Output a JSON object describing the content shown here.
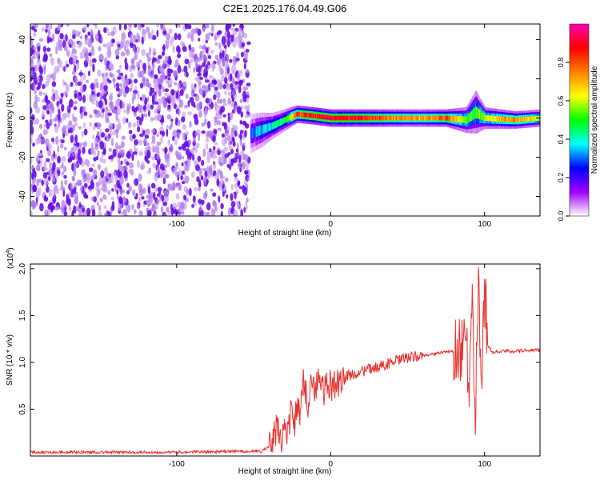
{
  "chart_data": [
    {
      "type": "heatmap",
      "title": "C2E1.2025.176.04.49.G06",
      "xlabel": "Height of straight line (km)",
      "ylabel": "Frequency (Hz)",
      "xlim": [
        -195,
        136
      ],
      "ylim": [
        -50,
        48
      ],
      "xticks": [
        -100,
        0,
        100
      ],
      "yticks": [
        -40,
        -20,
        0,
        20,
        40
      ],
      "colorbar": {
        "label": "Normalized spectral amplitude",
        "range": [
          0,
          1
        ],
        "ticks": [
          "0.0",
          "0.2",
          "0.4",
          "0.6",
          "0.8"
        ],
        "colors": [
          "#ffffff",
          "#a000ff",
          "#0000ff",
          "#00ffff",
          "#00ff00",
          "#ffff00",
          "#ff8000",
          "#ff0000",
          "#ff00b0"
        ]
      },
      "noise_region": {
        "x": [
          -195,
          -53
        ],
        "y": [
          -50,
          48
        ],
        "amplitude": [
          0.0,
          0.12
        ]
      },
      "signal_ridge": [
        {
          "x": -52,
          "f": -8,
          "amp": 0.25,
          "width": 9
        },
        {
          "x": -45,
          "f": -6,
          "amp": 0.35,
          "width": 8
        },
        {
          "x": -38,
          "f": -4,
          "amp": 0.4,
          "width": 6
        },
        {
          "x": -30,
          "f": -1,
          "amp": 0.45,
          "width": 5
        },
        {
          "x": -22,
          "f": 2,
          "amp": 0.8,
          "width": 4
        },
        {
          "x": -10,
          "f": 1,
          "amp": 0.85,
          "width": 4
        },
        {
          "x": 0,
          "f": 0,
          "amp": 0.9,
          "width": 4
        },
        {
          "x": 20,
          "f": 0,
          "amp": 0.85,
          "width": 4
        },
        {
          "x": 40,
          "f": 0,
          "amp": 0.75,
          "width": 4
        },
        {
          "x": 60,
          "f": 0,
          "amp": 0.7,
          "width": 4
        },
        {
          "x": 75,
          "f": 0,
          "amp": 0.8,
          "width": 4
        },
        {
          "x": 88,
          "f": -1,
          "amp": 0.55,
          "width": 6
        },
        {
          "x": 94,
          "f": 3,
          "amp": 0.5,
          "width": 10
        },
        {
          "x": 100,
          "f": 0,
          "amp": 0.6,
          "width": 5
        },
        {
          "x": 120,
          "f": -1,
          "amp": 0.75,
          "width": 4
        },
        {
          "x": 136,
          "f": 0,
          "amp": 0.6,
          "width": 4
        }
      ]
    },
    {
      "type": "line",
      "xlabel": "Height of straight line (km)",
      "ylabel": "SNR (10 * v/v)",
      "y_multiplier": "(x10",
      "y_multiplier_exponent": "4",
      "xlim": [
        -195,
        136
      ],
      "ylim": [
        0,
        2.05
      ],
      "xticks": [
        -100,
        0,
        100
      ],
      "yticks": [
        "0.5",
        "1.0",
        "1.5",
        "2.0"
      ],
      "color": "#e8322e",
      "series": [
        {
          "x": [
            -195,
            -150,
            -100,
            -60,
            -45,
            -38,
            -35,
            -32,
            -30,
            -28,
            -26,
            -24,
            -22,
            -20,
            -18,
            -15,
            -12,
            -10,
            -8,
            -5,
            0,
            10,
            20,
            30,
            40,
            50,
            60,
            70,
            80,
            85,
            88,
            90,
            92,
            94,
            96,
            98,
            100,
            102,
            105,
            110,
            120,
            130,
            136
          ],
          "y": [
            0.04,
            0.04,
            0.04,
            0.05,
            0.05,
            0.12,
            0.3,
            0.18,
            0.35,
            0.2,
            0.5,
            0.25,
            0.6,
            0.35,
            0.8,
            0.55,
            0.9,
            0.65,
            0.85,
            0.7,
            0.75,
            0.85,
            0.9,
            0.95,
            1.0,
            1.05,
            1.07,
            1.1,
            1.12,
            1.15,
            1.5,
            0.4,
            1.8,
            0.3,
            2.0,
            0.5,
            1.9,
            1.2,
            1.1,
            1.12,
            1.12,
            1.13,
            1.13
          ]
        }
      ]
    }
  ]
}
